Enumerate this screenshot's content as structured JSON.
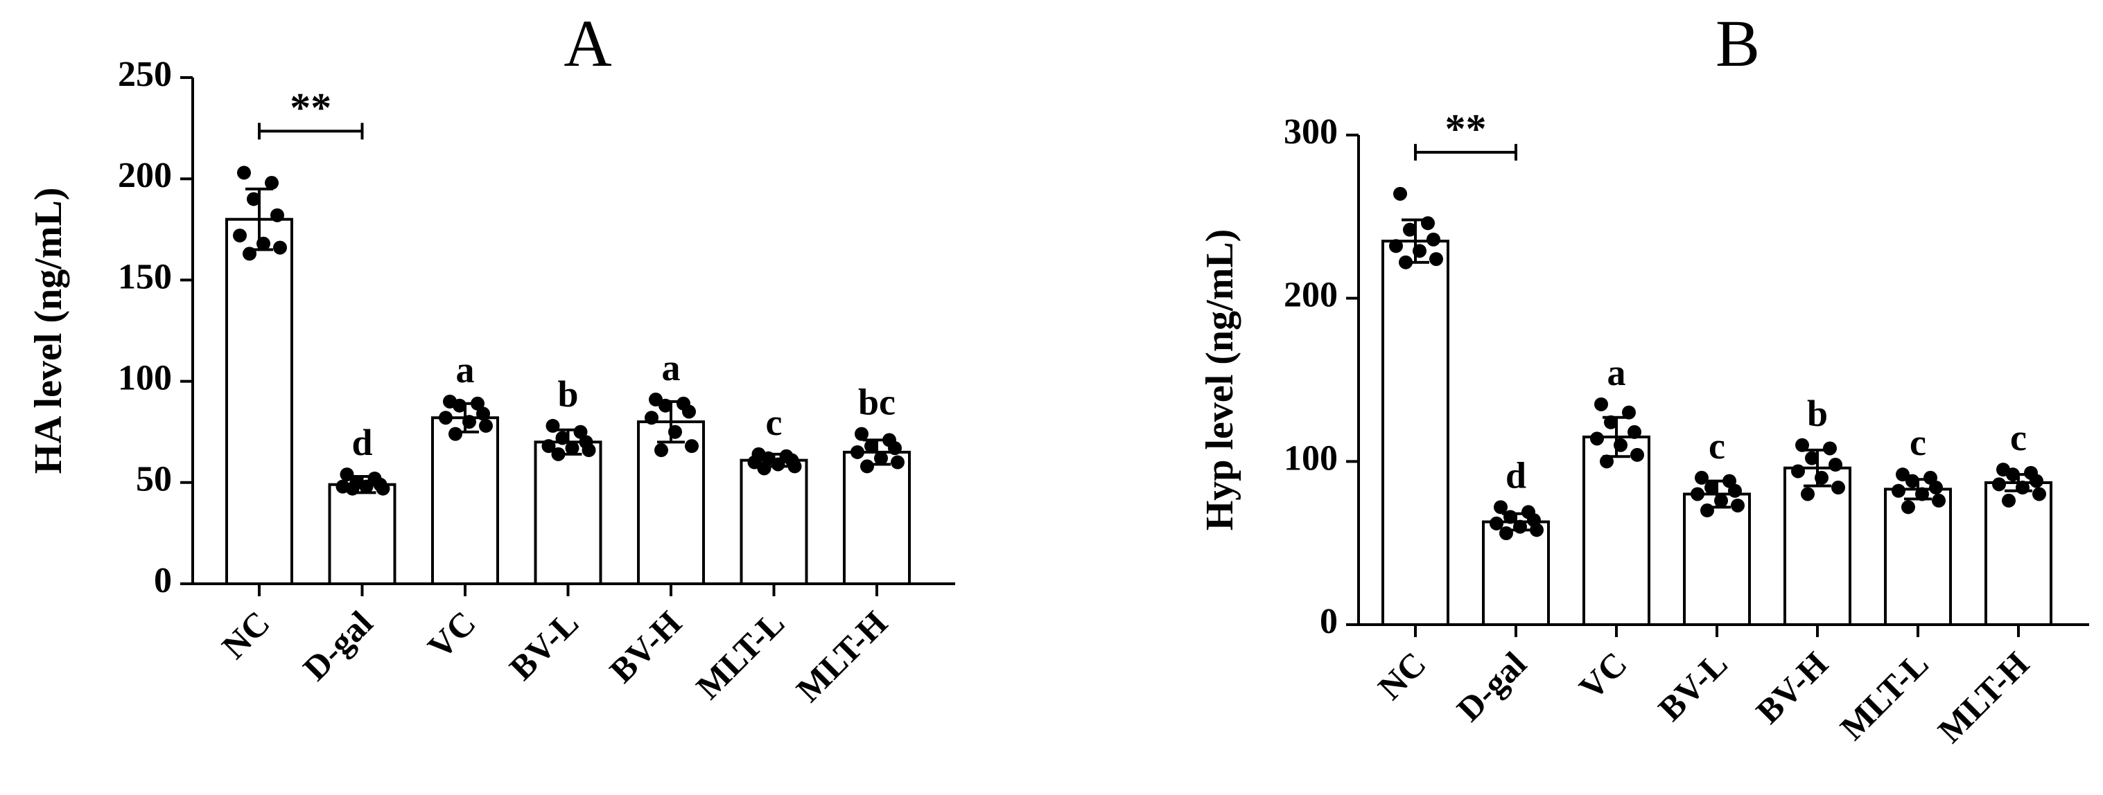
{
  "chart_data": [
    {
      "type": "bar",
      "panel_label": "A",
      "ylabel": "HA level (ng/mL)",
      "ylim": [
        0,
        250
      ],
      "yticks": [
        0,
        50,
        100,
        150,
        200,
        250
      ],
      "categories": [
        "NC",
        "D-gal",
        "VC",
        "BV-L",
        "BV-H",
        "MLT-L",
        "MLT-H"
      ],
      "means": [
        180,
        49,
        82,
        70,
        80,
        61,
        65
      ],
      "sd": [
        15,
        4,
        7,
        6,
        10,
        3,
        6
      ],
      "letters": [
        "",
        "d",
        "a",
        "b",
        "a",
        "c",
        "bc"
      ],
      "points": [
        [
          203,
          198,
          190,
          182,
          172,
          168,
          166,
          163
        ],
        [
          54,
          52,
          50,
          49,
          48,
          48,
          47,
          47
        ],
        [
          90,
          89,
          88,
          84,
          82,
          80,
          78,
          74
        ],
        [
          78,
          75,
          72,
          70,
          68,
          67,
          66,
          64
        ],
        [
          91,
          89,
          88,
          85,
          82,
          75,
          68,
          66
        ],
        [
          64,
          63,
          62,
          61,
          60,
          59,
          58,
          57
        ],
        [
          74,
          71,
          68,
          67,
          65,
          62,
          60,
          58
        ]
      ],
      "significance": {
        "from": 0,
        "to": 1,
        "label": "**"
      }
    },
    {
      "type": "bar",
      "panel_label": "B",
      "ylabel": "Hyp level (ng/mL)",
      "ylim": [
        0,
        300
      ],
      "yticks": [
        0,
        100,
        200,
        300
      ],
      "categories": [
        "NC",
        "D-gal",
        "VC",
        "BV-L",
        "BV-H",
        "MLT-L",
        "MLT-H"
      ],
      "means": [
        235,
        63,
        115,
        80,
        96,
        83,
        87
      ],
      "sd": [
        13,
        5,
        12,
        8,
        11,
        6,
        5
      ],
      "letters": [
        "",
        "d",
        "a",
        "c",
        "b",
        "c",
        "c"
      ],
      "points": [
        [
          264,
          246,
          242,
          236,
          232,
          229,
          224,
          222
        ],
        [
          72,
          69,
          66,
          64,
          62,
          60,
          58,
          56
        ],
        [
          135,
          130,
          124,
          118,
          114,
          110,
          104,
          100
        ],
        [
          90,
          88,
          84,
          82,
          80,
          76,
          73,
          70
        ],
        [
          110,
          108,
          102,
          98,
          94,
          90,
          84,
          80
        ],
        [
          92,
          90,
          88,
          84,
          82,
          80,
          76,
          72
        ],
        [
          95,
          93,
          92,
          88,
          86,
          84,
          80,
          76
        ]
      ],
      "significance": {
        "from": 0,
        "to": 1,
        "label": "**"
      }
    }
  ]
}
